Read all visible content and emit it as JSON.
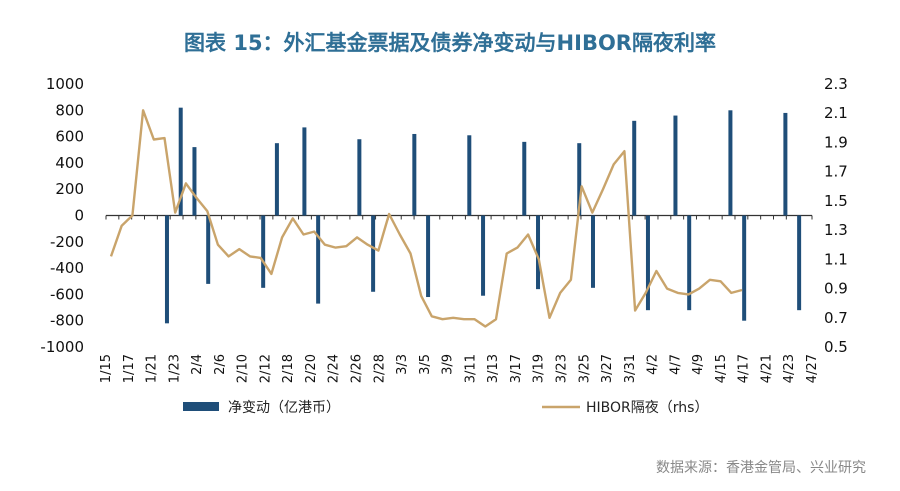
{
  "chart_data": {
    "type": "bar+line",
    "title": "图表 15：外汇基金票据及债券净变动与HIBOR隔夜利率",
    "source": "数据来源：香港金管局、兴业研究",
    "x_tick_labels": [
      "1/15",
      "1/17",
      "1/21",
      "1/23",
      "2/4",
      "2/6",
      "2/10",
      "2/12",
      "2/18",
      "2/20",
      "2/24",
      "2/26",
      "2/28",
      "3/3",
      "3/5",
      "3/9",
      "3/11",
      "3/13",
      "3/17",
      "3/19",
      "3/23",
      "3/25",
      "3/27",
      "3/31",
      "4/2",
      "4/7",
      "4/9",
      "4/15",
      "4/17",
      "4/21",
      "4/23",
      "4/27"
    ],
    "x_count": 55,
    "y_left": {
      "min": -1000,
      "max": 1000,
      "step": 200,
      "ticks": [
        "1000",
        "800",
        "600",
        "400",
        "200",
        "0",
        "-200",
        "-400",
        "-600",
        "-800",
        "-1000"
      ]
    },
    "y_right": {
      "min": 0.5,
      "max": 2.3,
      "step": 0.2,
      "ticks": [
        "2.3",
        "2.1",
        "1.9",
        "1.7",
        "1.5",
        "1.3",
        "1.1",
        "0.9",
        "0.7",
        "0.5"
      ]
    },
    "series": [
      {
        "name": "净变动（亿港币）",
        "type": "bar",
        "axis": "left",
        "color": "#1f4e79",
        "points": [
          [
            8,
            -820
          ],
          [
            10,
            820
          ],
          [
            12,
            520
          ],
          [
            14,
            -520
          ],
          [
            22,
            -550
          ],
          [
            24,
            550
          ],
          [
            28,
            670
          ],
          [
            30,
            -670
          ],
          [
            36,
            580
          ],
          [
            38,
            -580
          ],
          [
            44,
            620
          ],
          [
            46,
            -620
          ],
          [
            52,
            610
          ],
          [
            54,
            -610
          ],
          [
            60,
            560
          ],
          [
            62,
            -560
          ],
          [
            68,
            550
          ],
          [
            70,
            -550
          ],
          [
            76,
            720
          ],
          [
            78,
            -720
          ],
          [
            82,
            760
          ],
          [
            84,
            -720
          ],
          [
            90,
            800
          ],
          [
            92,
            -800
          ],
          [
            98,
            780
          ],
          [
            100,
            -720
          ]
        ]
      },
      {
        "name": "HIBOR隔夜（rhs）",
        "type": "line",
        "axis": "right",
        "color": "#c9a46b",
        "points": [
          [
            0,
            1.12
          ],
          [
            1,
            1.33
          ],
          [
            2,
            1.4
          ],
          [
            3,
            2.12
          ],
          [
            4,
            1.92
          ],
          [
            5,
            1.93
          ],
          [
            6,
            1.42
          ],
          [
            7,
            1.62
          ],
          [
            8,
            1.52
          ],
          [
            9,
            1.43
          ],
          [
            10,
            1.2
          ],
          [
            11,
            1.12
          ],
          [
            12,
            1.17
          ],
          [
            13,
            1.12
          ],
          [
            14,
            1.11
          ],
          [
            15,
            1.0
          ],
          [
            16,
            1.25
          ],
          [
            17,
            1.38
          ],
          [
            18,
            1.27
          ],
          [
            19,
            1.29
          ],
          [
            20,
            1.2
          ],
          [
            21,
            1.18
          ],
          [
            22,
            1.19
          ],
          [
            23,
            1.25
          ],
          [
            24,
            1.2
          ],
          [
            25,
            1.16
          ],
          [
            26,
            1.41
          ],
          [
            27,
            1.27
          ],
          [
            28,
            1.14
          ],
          [
            29,
            0.85
          ],
          [
            30,
            0.71
          ],
          [
            31,
            0.69
          ],
          [
            32,
            0.7
          ],
          [
            33,
            0.69
          ],
          [
            34,
            0.69
          ],
          [
            35,
            0.64
          ],
          [
            36,
            0.69
          ],
          [
            37,
            1.14
          ],
          [
            38,
            1.18
          ],
          [
            39,
            1.27
          ],
          [
            40,
            1.1
          ],
          [
            41,
            0.7
          ],
          [
            42,
            0.87
          ],
          [
            43,
            0.96
          ],
          [
            44,
            1.6
          ],
          [
            45,
            1.42
          ],
          [
            46,
            1.58
          ],
          [
            47,
            1.75
          ],
          [
            48,
            1.84
          ],
          [
            49,
            0.75
          ],
          [
            50,
            0.87
          ],
          [
            51,
            1.02
          ],
          [
            52,
            0.9
          ],
          [
            53,
            0.87
          ],
          [
            54,
            0.86
          ],
          [
            55,
            0.9
          ],
          [
            56,
            0.96
          ],
          [
            57,
            0.95
          ],
          [
            58,
            0.87
          ],
          [
            59,
            0.89
          ]
        ]
      }
    ],
    "legend": {
      "position": "bottom",
      "labels": [
        "净变动（亿港币）",
        "HIBOR隔夜（rhs）"
      ]
    }
  }
}
